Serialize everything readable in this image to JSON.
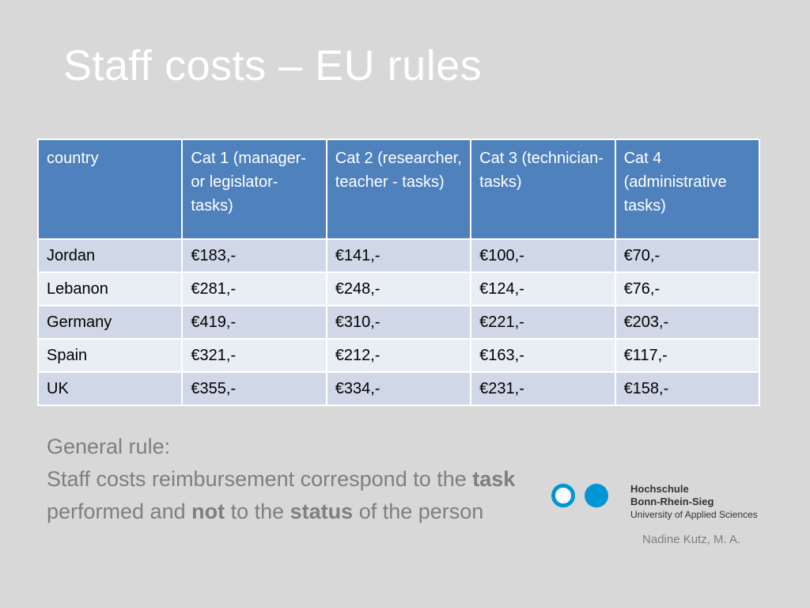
{
  "slide": {
    "title": "Staff costs – EU rules"
  },
  "table": {
    "headers": [
      "country",
      "Cat 1 (manager- or legislator-tasks)",
      "Cat 2 (researcher, teacher - tasks)",
      "Cat 3 (technician-tasks)",
      "Cat 4 (administrative tasks)"
    ],
    "rows": [
      [
        "Jordan",
        "€183,-",
        "€141,-",
        "€100,-",
        "€70,-"
      ],
      [
        "Lebanon",
        "€281,-",
        "€248,-",
        "€124,-",
        "€76,-"
      ],
      [
        "Germany",
        "€419,-",
        "€310,-",
        "€221,-",
        "€203,-"
      ],
      [
        "Spain",
        "€321,-",
        "€212,-",
        "€163,-",
        "€117,-"
      ],
      [
        "UK",
        "€355,-",
        "€334,-",
        "€231,-",
        "€158,-"
      ]
    ],
    "colors": {
      "header": "#4f81bd",
      "row_odd": "#d0d8e8",
      "row_even": "#e9edf4"
    }
  },
  "rule": {
    "heading": "General rule:",
    "text_1": "Staff costs reimbursement correspond to the ",
    "bold_1": "task",
    "text_2": " performed and ",
    "bold_2": "not",
    "text_3": " to the ",
    "bold_3": "status",
    "text_4": " of the person"
  },
  "logo": {
    "line1": "Hochschule",
    "line2": "Bonn-Rhein-Sieg",
    "line3": "University of Applied Sciences",
    "color": "#0096d6"
  },
  "author": "Nadine Kutz, M. A."
}
